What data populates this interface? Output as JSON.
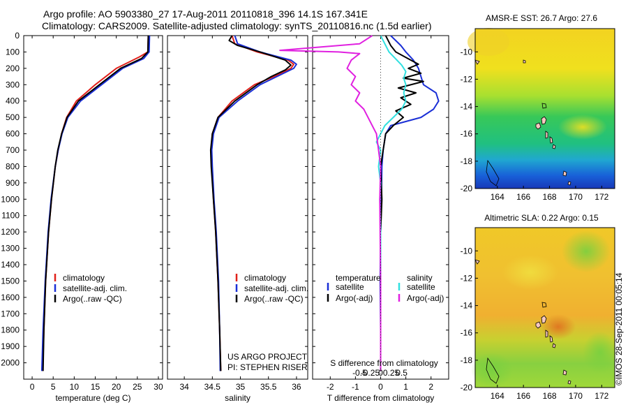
{
  "title_line1": "Argo profile: AO 5903380_27 17-Aug-2011 20110818_396 14.1S 167.341E",
  "title_line2": "Climatology: CARS2009. Satellite-adjusted climatology: synTS_20110816.nc (1.5d earlier)",
  "credit": "©IMOS 28-Sep-2011 00:05:14",
  "colors": {
    "climatology": "#e0201a",
    "satellite": "#1a2fd6",
    "argo": "#000000",
    "sat_salinity": "#30e0e0",
    "argo_salinity": "#e020e0"
  },
  "depth_ticks": [
    "0",
    "100",
    "200",
    "300",
    "400",
    "500",
    "600",
    "700",
    "800",
    "900",
    "1000",
    "1100",
    "1200",
    "1300",
    "1400",
    "1500",
    "1600",
    "1700",
    "1800",
    "1900",
    "2000"
  ],
  "chart_data": [
    {
      "type": "line",
      "xlabel": "temperature (deg C)",
      "xlim": [
        -2,
        31
      ],
      "ylim": [
        2100,
        0
      ],
      "xticks": [
        "0",
        "5",
        "10",
        "15",
        "20",
        "25",
        "30"
      ],
      "legend": [
        "climatology",
        "satellite-adj. clim.",
        "Argo(..raw -QC)"
      ],
      "series": [
        {
          "name": "climatology",
          "depth": [
            0,
            100,
            130,
            200,
            300,
            400,
            500,
            600,
            700,
            800,
            1000,
            1200,
            1500,
            1800,
            2050
          ],
          "values": [
            27.6,
            27.5,
            25.5,
            20,
            15,
            10.5,
            8.2,
            7,
            6.2,
            5.5,
            4.6,
            3.9,
            3.2,
            2.8,
            2.5
          ]
        },
        {
          "name": "satellite-adj. clim.",
          "depth": [
            0,
            100,
            140,
            200,
            300,
            400,
            500,
            600,
            700,
            800,
            1000,
            1200,
            1500,
            1800,
            2050
          ],
          "values": [
            27.9,
            27.8,
            26.5,
            21.5,
            16.5,
            11.5,
            8.5,
            7.1,
            6.2,
            5.5,
            4.5,
            3.8,
            3.1,
            2.6,
            2.3
          ]
        },
        {
          "name": "Argo(..raw -QC)",
          "depth": [
            0,
            100,
            140,
            200,
            300,
            400,
            500,
            600,
            700,
            800,
            1000,
            1200,
            1500,
            1800,
            2050
          ],
          "values": [
            27.6,
            27.5,
            26,
            21,
            16,
            11,
            8.3,
            7,
            6.1,
            5.5,
            4.6,
            3.9,
            3.2,
            2.8,
            2.6
          ]
        }
      ]
    },
    {
      "type": "line",
      "xlabel": "salinity",
      "xlim": [
        33.7,
        36.2
      ],
      "ylim": [
        2100,
        0
      ],
      "xticks": [
        "34",
        "34.5",
        "35",
        "35.5",
        "36"
      ],
      "legend": [
        "climatology",
        "satellite-adj. clim.",
        "Argo(..raw -QC)"
      ],
      "annotation": [
        "US ARGO PROJECT",
        "PI: STEPHEN RISER"
      ],
      "series": [
        {
          "name": "climatology",
          "depth": [
            0,
            50,
            100,
            150,
            175,
            200,
            250,
            300,
            400,
            500,
            600,
            700,
            800,
            1000,
            1200,
            1500,
            1800,
            2050
          ],
          "values": [
            34.85,
            34.9,
            35.3,
            35.85,
            35.95,
            35.9,
            35.6,
            35.25,
            34.85,
            34.6,
            34.5,
            34.48,
            34.49,
            34.52,
            34.56,
            34.6,
            34.63,
            34.65
          ]
        },
        {
          "name": "satellite-adj. clim.",
          "depth": [
            0,
            50,
            100,
            150,
            175,
            200,
            250,
            300,
            400,
            500,
            600,
            700,
            800,
            1000,
            1200,
            1500,
            1800,
            2050
          ],
          "values": [
            34.9,
            34.95,
            35.35,
            35.9,
            36.0,
            35.95,
            35.65,
            35.35,
            34.95,
            34.62,
            34.52,
            34.49,
            34.5,
            34.53,
            34.57,
            34.61,
            34.63,
            34.64
          ]
        },
        {
          "name": "Argo(..raw -QC)",
          "depth": [
            0,
            30,
            60,
            100,
            150,
            180,
            210,
            250,
            300,
            400,
            500,
            600,
            700,
            800,
            1000,
            1200,
            1500,
            1800,
            2050
          ],
          "values": [
            34.85,
            34.8,
            34.95,
            35.35,
            35.8,
            35.9,
            35.8,
            35.55,
            35.3,
            34.9,
            34.6,
            34.5,
            34.47,
            34.48,
            34.52,
            34.56,
            34.6,
            34.63,
            34.65
          ]
        }
      ]
    },
    {
      "type": "line",
      "xlabel": "T difference from climatology",
      "xlabel_top": "S difference from climatology",
      "xlim": [
        -2.7,
        2.7
      ],
      "ylim": [
        2100,
        0
      ],
      "xticks": [
        "-2",
        "-1",
        "0",
        "1",
        "2"
      ],
      "xticks_top": [
        "-0.5",
        "-0.25",
        "0",
        "0.25",
        "0.5"
      ],
      "legend": {
        "temperature": "temperature",
        "salinity": "salinity",
        "items": [
          "satellite",
          "Argo(-adj)",
          "satellite",
          "Argo(-adj)"
        ]
      },
      "series": [
        {
          "name": "satellite",
          "depth": [
            0,
            60,
            100,
            150,
            200,
            250,
            300,
            350,
            400,
            450,
            500,
            550,
            600,
            700,
            800,
            1000,
            1200,
            1500,
            1800,
            2050
          ],
          "values": [
            0.4,
            0.8,
            1.0,
            1.3,
            1.5,
            1.6,
            1.7,
            2.2,
            2.3,
            2.1,
            1.6,
            0.4,
            0.2,
            0.1,
            0.05,
            0.03,
            0.0,
            -0.02,
            0.0,
            0.0
          ]
        },
        {
          "name": "Argo(-adj)",
          "depth": [
            0,
            60,
            100,
            150,
            175,
            200,
            230,
            260,
            280,
            320,
            350,
            380,
            420,
            460,
            500,
            550,
            600,
            700,
            800,
            1000,
            1200,
            1500,
            2050
          ],
          "values": [
            0.2,
            0.4,
            0.6,
            1.2,
            1.5,
            1.1,
            1.6,
            0.9,
            1.7,
            0.7,
            1.4,
            0.8,
            1.2,
            0.6,
            0.9,
            0.5,
            0.2,
            0.1,
            0.0,
            0.05,
            0.0,
            0.0,
            0.0
          ]
        },
        {
          "name": "satellite",
          "depth": [
            0,
            50,
            100,
            140,
            180,
            220,
            260,
            300,
            350,
            400,
            450,
            500,
            550,
            600,
            650,
            700,
            800,
            900,
            1000,
            1200,
            1500,
            1800,
            2050
          ],
          "values": [
            0.0,
            0.1,
            0.2,
            0.35,
            0.5,
            0.6,
            0.55,
            0.6,
            0.55,
            0.6,
            0.5,
            0.3,
            0.1,
            0.0,
            -0.1,
            0.0,
            -0.05,
            0.0,
            -0.02,
            0.0,
            0.0,
            0.0,
            0.0
          ]
        },
        {
          "name": "Argo(-adj)",
          "depth": [
            0,
            50,
            90,
            100,
            110,
            150,
            200,
            250,
            300,
            350,
            400,
            450,
            500,
            550,
            600,
            700,
            800,
            1000,
            1500,
            2050
          ],
          "values": [
            -0.2,
            -0.5,
            -2.4,
            -1.0,
            -0.5,
            -0.7,
            -0.8,
            -0.6,
            -0.7,
            -0.5,
            -0.6,
            -0.4,
            -0.3,
            -0.2,
            -0.1,
            -0.05,
            0.0,
            -0.02,
            0.0,
            0.0
          ]
        }
      ]
    },
    {
      "type": "heatmap",
      "title": "AMSR-E SST: 26.7 Argo: 27.6",
      "xlim": [
        162.3,
        173.0
      ],
      "ylim": [
        -20,
        -8.3
      ],
      "xticks": [
        "164",
        "166",
        "168",
        "170",
        "172"
      ],
      "yticks": [
        "-10",
        "-12",
        "-14",
        "-16",
        "-18",
        "-20"
      ]
    },
    {
      "type": "heatmap",
      "title": "Altimetric SLA: 0.22 Argo: 0.15",
      "xlim": [
        162.3,
        173.0
      ],
      "ylim": [
        -20,
        -8.3
      ],
      "xticks": [
        "164",
        "166",
        "168",
        "170",
        "172"
      ],
      "yticks": [
        "-10",
        "-12",
        "-14",
        "-16",
        "-18",
        "-20"
      ]
    }
  ]
}
